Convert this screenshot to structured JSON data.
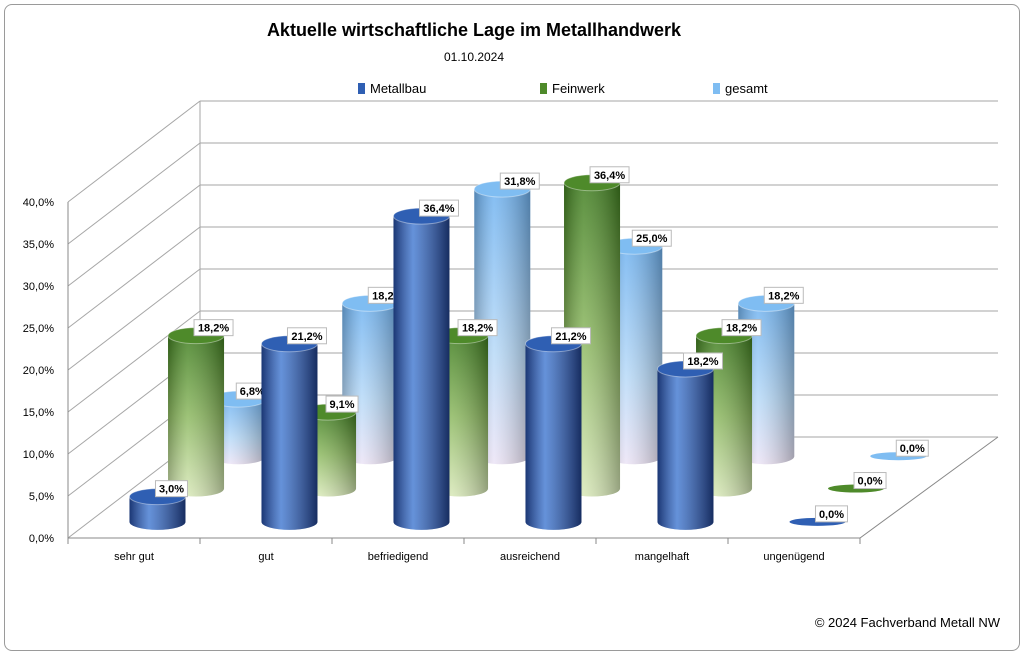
{
  "chart_data": {
    "type": "bar",
    "title": "Aktuelle wirtschaftliche Lage im Metallhandwerk",
    "subtitle": "01.10.2024",
    "categories": [
      "sehr gut",
      "gut",
      "befriedigend",
      "ausreichend",
      "mangelhaft",
      "ungenügend"
    ],
    "series": [
      {
        "name": "Metallbau",
        "color": "#2f5fb3",
        "values": [
          3.0,
          21.2,
          36.4,
          21.2,
          18.2,
          0.0
        ],
        "labels": [
          "3,0%",
          "21,2%",
          "36,4%",
          "21,2%",
          "18,2%",
          "0,0%"
        ]
      },
      {
        "name": "Feinwerk",
        "color": "#4e8a2a",
        "values": [
          18.2,
          9.1,
          18.2,
          36.4,
          18.2,
          0.0
        ],
        "labels": [
          "18,2%",
          "9,1%",
          "18,2%",
          "36,4%",
          "18,2%",
          "0,0%"
        ]
      },
      {
        "name": "gesamt",
        "color": "#7fbdf2",
        "values": [
          6.8,
          18.2,
          31.8,
          25.0,
          18.2,
          0.0
        ],
        "labels": [
          "6,8%",
          "18,2%",
          "31,8%",
          "25,0%",
          "18,2%",
          "0,0%"
        ]
      }
    ],
    "yticks": [
      "0,0%",
      "5,0%",
      "10,0%",
      "15,0%",
      "20,0%",
      "25,0%",
      "30,0%",
      "35,0%",
      "40,0%"
    ],
    "ylim": [
      0,
      40
    ],
    "grid": true,
    "legend": "top",
    "footer": "© 2024 Fachverband Metall NW"
  }
}
